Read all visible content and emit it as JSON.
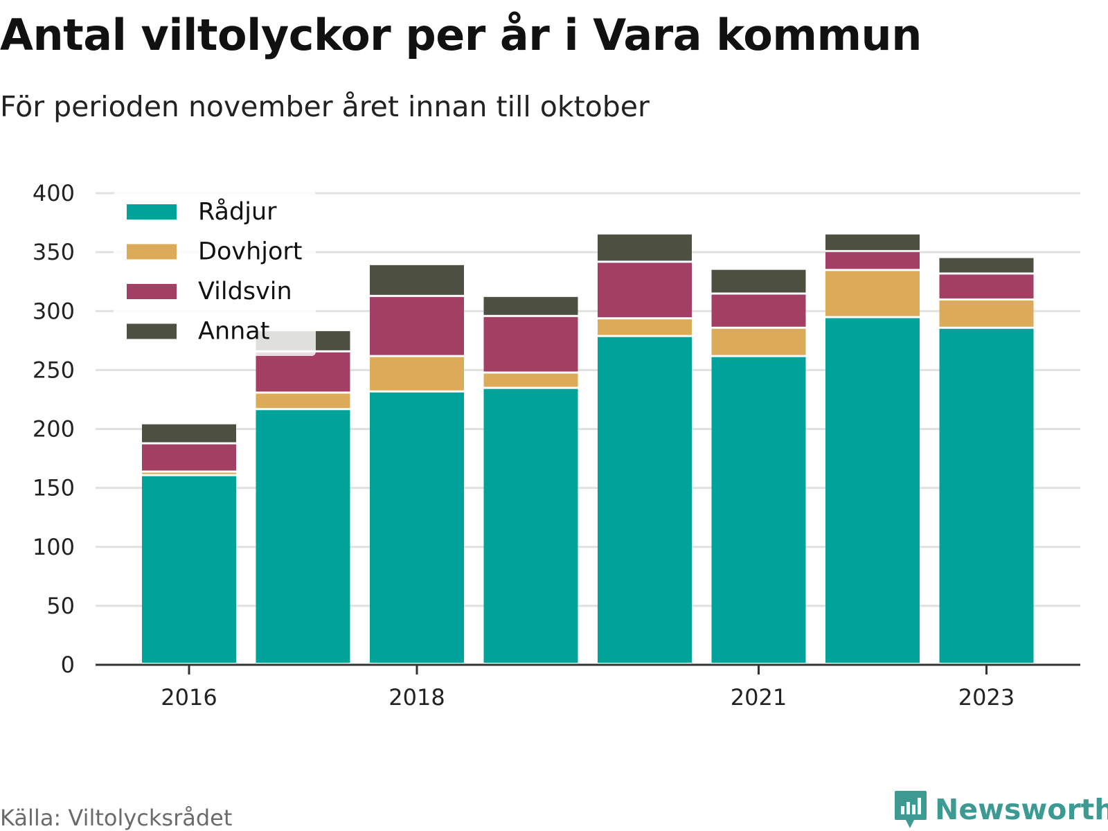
{
  "title": "Antal viltolyckor per år i Vara kommun",
  "subtitle": "För perioden november året innan till oktober",
  "source": "Källa: Viltolycksrådet",
  "brand": {
    "name": "Newsworthy",
    "icon": "newsworthy-logo-icon",
    "color": "#3d9a93"
  },
  "chart_data": {
    "type": "bar",
    "stacked": true,
    "title": "Antal viltolyckor per år i Vara kommun",
    "subtitle": "För perioden november året innan till oktober",
    "categories": [
      2016,
      2017,
      2018,
      2019,
      2020,
      2021,
      2022,
      2023
    ],
    "x_tick_labels": [
      "2016",
      "2018",
      "2021",
      "2023"
    ],
    "x_ticks": [
      2016,
      2018,
      2021,
      2023
    ],
    "ylim": [
      0,
      400
    ],
    "y_ticks": [
      0,
      50,
      100,
      150,
      200,
      250,
      300,
      350,
      400
    ],
    "grid": true,
    "legend_position": "top-left",
    "series": [
      {
        "name": "Rådjur",
        "color": "#00a29a",
        "values": [
          160,
          216,
          231,
          234,
          278,
          261,
          294,
          285
        ]
      },
      {
        "name": "Dovhjort",
        "color": "#dbab5a",
        "values": [
          3,
          14,
          30,
          13,
          15,
          24,
          40,
          24
        ]
      },
      {
        "name": "Vildsvin",
        "color": "#a33f64",
        "values": [
          24,
          35,
          51,
          48,
          48,
          29,
          16,
          22
        ]
      },
      {
        "name": "Annat",
        "color": "#4d4f41",
        "values": [
          17,
          18,
          27,
          17,
          24,
          21,
          15,
          14
        ]
      }
    ]
  }
}
